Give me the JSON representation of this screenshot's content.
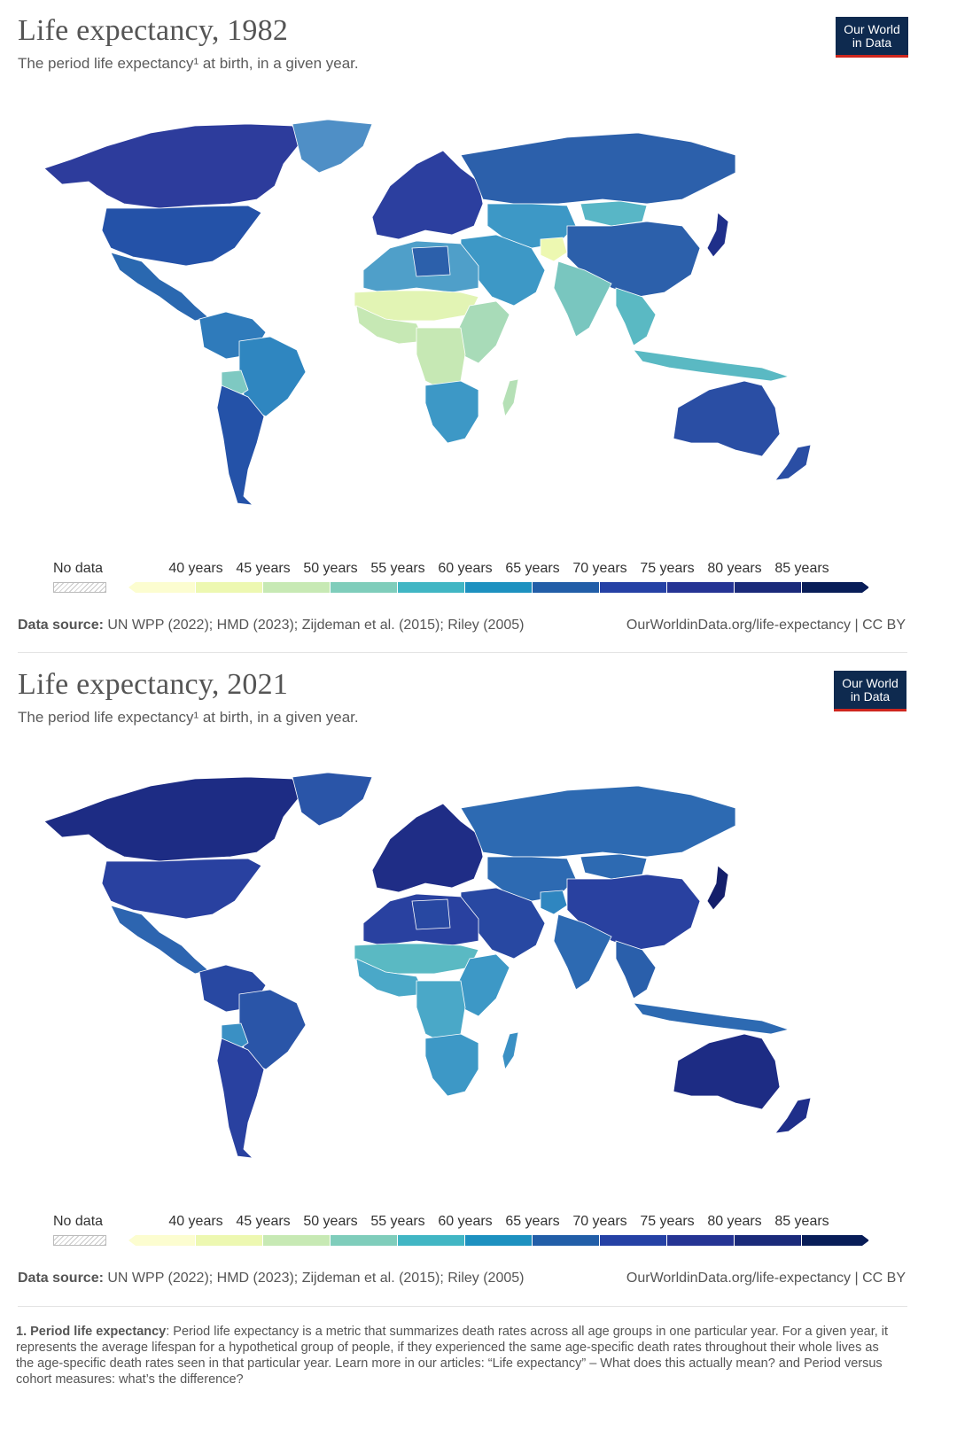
{
  "panels": [
    {
      "year": "1982",
      "title": "Life expectancy, 1982",
      "subtitle": "The period life expectancy¹ at birth, in a given year.",
      "regions": {
        "north_america": "#2d3c9c",
        "usa": "#2452a8",
        "greenland": "#4f8fc6",
        "mexico_central": "#2a68b0",
        "south_america_n": "#2f7bbb",
        "brazil": "#2f86c0",
        "bolivia": "#7ec9c2",
        "argentina": "#2452a8",
        "europe": "#2c3f9f",
        "russia": "#2c60ab",
        "central_asia": "#3d98c6",
        "mongolia": "#58b6c6",
        "china": "#2c60ab",
        "japan": "#1f2f8a",
        "middle_east": "#3d98c6",
        "afghanistan": "#edf8b1",
        "india": "#79c6bf",
        "se_asia": "#5ab9c3",
        "indonesia": "#5ab9c3",
        "north_africa": "#4f9fc9",
        "libya": "#2c60ab",
        "sahel": "#e2f4b4",
        "west_africa": "#c6e8b4",
        "east_africa": "#a8dbb8",
        "central_africa": "#c6e8b4",
        "southern_africa": "#3d98c6",
        "madagascar": "#b5e0b6",
        "australia": "#2a4ea4",
        "new_zealand": "#2a4ea4"
      }
    },
    {
      "year": "2021",
      "title": "Life expectancy, 2021",
      "subtitle": "The period life expectancy¹ at birth, in a given year.",
      "regions": {
        "north_america": "#1d2c84",
        "usa": "#2941a0",
        "greenland": "#2a55a8",
        "mexico_central": "#2d65b0",
        "south_america_n": "#2848a2",
        "brazil": "#2a55a8",
        "bolivia": "#3a90c4",
        "argentina": "#2941a0",
        "europe": "#1f2d86",
        "russia": "#2d6ab2",
        "central_asia": "#2d6ab2",
        "mongolia": "#2d6ab2",
        "china": "#2941a0",
        "japan": "#141f6b",
        "middle_east": "#2848a2",
        "afghanistan": "#2f86c0",
        "india": "#2d6ab2",
        "se_asia": "#2a5fab",
        "indonesia": "#2d6ab2",
        "north_africa": "#2941a0",
        "libya": "#2848a2",
        "sahel": "#5ab9c3",
        "west_africa": "#4aa8c8",
        "east_africa": "#3d98c6",
        "central_africa": "#4aa8c8",
        "southern_africa": "#3d98c6",
        "madagascar": "#3a90c4",
        "australia": "#1d2c84",
        "new_zealand": "#1f2f8a"
      }
    }
  ],
  "logo": {
    "line1": "Our World",
    "line2": "in Data",
    "background": "#0e2a4f",
    "accent": "#ce261e"
  },
  "legend": {
    "no_data_label": "No data",
    "ticks": [
      "40 years",
      "45 years",
      "50 years",
      "55 years",
      "60 years",
      "65 years",
      "70 years",
      "75 years",
      "80 years",
      "85 years"
    ],
    "colors": [
      "#fcfdd0",
      "#edf8b1",
      "#c7e9b4",
      "#7fcdbb",
      "#41b6c4",
      "#1d91c0",
      "#225ea8",
      "#2541a5",
      "#253494",
      "#1a2a7a",
      "#081d58"
    ]
  },
  "footer": {
    "source_label": "Data source:",
    "source_text": "UN WPP (2022); HMD (2023); Zijdeman et al. (2015); Riley (2005)",
    "url_text": "OurWorldinData.org/life-expectancy | CC BY"
  },
  "note": {
    "label": "1. Period life expectancy",
    "text": ": Period life expectancy is a metric that summarizes death rates across all age groups in one particular year. For a given year, it represents the average lifespan for a hypothetical group of people, if they experienced the same age-specific death rates throughout their whole lives as the age-specific death rates seen in that particular year. Learn more in our articles: “Life expectancy” – What does this actually mean? and Period versus cohort measures: what’s the difference?"
  }
}
